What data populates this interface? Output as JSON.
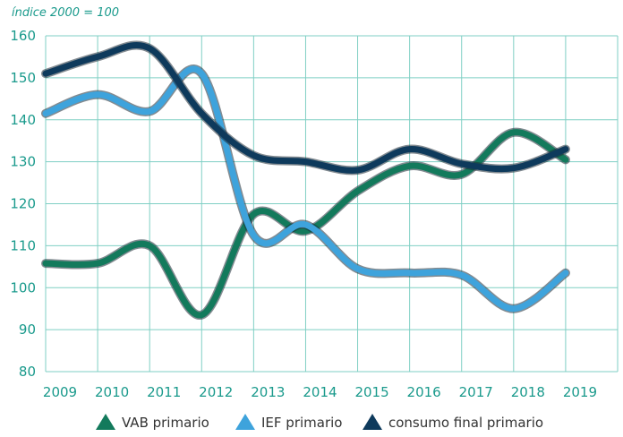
{
  "chart_data": {
    "type": "line",
    "ylabel": "índice 2000 = 100",
    "xlabel": "",
    "ylim": [
      80,
      160
    ],
    "yticks": [
      80,
      90,
      100,
      110,
      120,
      130,
      140,
      150,
      160
    ],
    "categories": [
      "2009",
      "2010",
      "2011",
      "2012",
      "2013",
      "2014",
      "2015",
      "2016",
      "2017",
      "2018",
      "2019"
    ],
    "grid": true,
    "legend_position": "bottom",
    "series": [
      {
        "name": "VAB primario",
        "color": "#137a5c",
        "values": [
          105.8,
          105.8,
          110,
          93.5,
          117.5,
          113.5,
          123,
          129,
          127,
          137,
          130.5
        ]
      },
      {
        "name": "IEF primario",
        "color": "#3ea3dc",
        "values": [
          141.5,
          146,
          142,
          151,
          112.5,
          115,
          104.5,
          103.5,
          103,
          95,
          103.5
        ]
      },
      {
        "name": "consumo final primario",
        "color": "#0e3a5c",
        "values": [
          151,
          155,
          157,
          141.5,
          131.5,
          130,
          128,
          133,
          129.5,
          128.5,
          133
        ]
      }
    ]
  }
}
